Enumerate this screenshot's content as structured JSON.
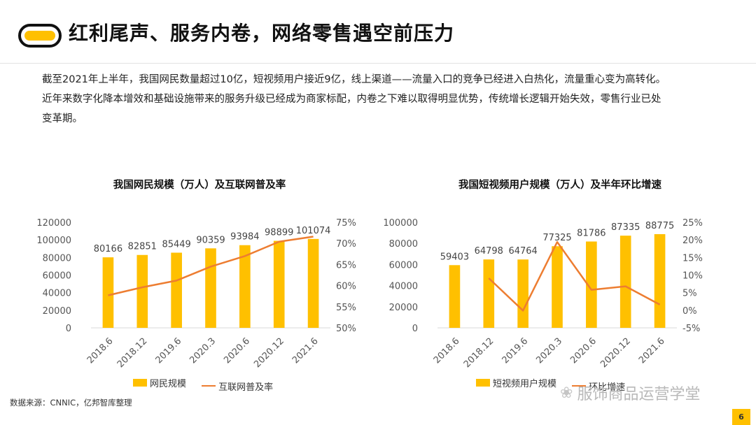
{
  "header": {
    "title": "红利尾声、服务内卷，网络零售遇空前压力",
    "logo_icon": "capsule-logo-icon",
    "accent_color": "#FFC000"
  },
  "body": {
    "lines": [
      "截至2021年上半年，我国网民数量超过10亿，短视频用户接近9亿，线上渠道——流量入口的竞争已经进入白热化，流量重心变为高转化。",
      "近年来数字化降本增效和基础设施带来的服务升级已经成为商家标配，内卷之下难以取得明显优势，传统增长逻辑开始失效，零售行业已处",
      "变革期。"
    ]
  },
  "chart_data": [
    {
      "type": "bar",
      "title": "我国网民规模（万人）及互联网普及率",
      "categories": [
        "2018.6",
        "2018.12",
        "2019.6",
        "2020.3",
        "2020.6",
        "2020.12",
        "2021.6"
      ],
      "series": [
        {
          "name": "网民规模",
          "kind": "bar",
          "axis": "left",
          "color": "#FFC000",
          "values": [
            80166,
            82851,
            85449,
            90359,
            93984,
            98899,
            101074
          ]
        },
        {
          "name": "互联网普及率",
          "kind": "line",
          "axis": "right",
          "color": "#ED7D31",
          "values": [
            57.7,
            59.6,
            61.2,
            64.5,
            67.0,
            70.4,
            71.6
          ]
        }
      ],
      "ylim_left": [
        0,
        120000
      ],
      "yticks_left": [
        "0",
        "20000",
        "40000",
        "60000",
        "80000",
        "100000",
        "120000"
      ],
      "ylim_right": [
        50,
        75
      ],
      "yticks_right": [
        "50%",
        "55%",
        "60%",
        "65%",
        "70%",
        "75%"
      ],
      "legend": "bottom",
      "grid": false
    },
    {
      "type": "bar",
      "title": "我国短视频用户规模（万人）及半年环比增速",
      "categories": [
        "2018.6",
        "2018.12",
        "2019.6",
        "2020.3",
        "2020.6",
        "2020.12",
        "2021.6"
      ],
      "series": [
        {
          "name": "短视频用户规模",
          "kind": "bar",
          "axis": "left",
          "color": "#FFC000",
          "values": [
            59403,
            64798,
            64764,
            77325,
            81786,
            87335,
            88775
          ]
        },
        {
          "name": "环比增速",
          "kind": "line",
          "axis": "right",
          "color": "#ED7D31",
          "values": [
            null,
            9.1,
            -0.1,
            19.4,
            5.8,
            6.8,
            1.6
          ]
        }
      ],
      "ylim_left": [
        0,
        100000
      ],
      "yticks_left": [
        "0",
        "20000",
        "40000",
        "60000",
        "80000",
        "100000"
      ],
      "ylim_right": [
        -5,
        25
      ],
      "yticks_right": [
        "-5%",
        "0%",
        "5%",
        "10%",
        "15%",
        "20%",
        "25%"
      ],
      "legend": "bottom",
      "grid": false
    }
  ],
  "footer": {
    "source": "数据来源：CNNIC，亿邦智库整理",
    "watermark": "服饰商品运营学堂",
    "watermark_icon": "wechat-icon",
    "page_number": "6"
  }
}
